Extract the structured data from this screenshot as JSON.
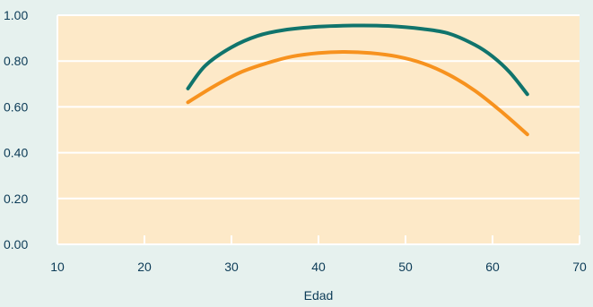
{
  "chart_data": {
    "type": "line",
    "title": "",
    "xlabel": "Edad",
    "ylabel": "",
    "xlim": [
      10,
      70
    ],
    "ylim": [
      0,
      1
    ],
    "x_ticks": [
      "10",
      "20",
      "30",
      "40",
      "50",
      "60",
      "70"
    ],
    "y_ticks": [
      "0.00",
      "0.20",
      "0.40",
      "0.60",
      "0.80",
      "1.00"
    ],
    "grid": "horizontal",
    "legend": "none",
    "plot_background": "#fde9c8",
    "page_background": "#e6f1ee",
    "series": [
      {
        "color": "#10746c",
        "x": [
          25,
          27,
          30,
          33,
          36,
          40,
          44,
          48,
          52,
          55,
          58,
          60,
          62,
          64
        ],
        "y": [
          0.68,
          0.78,
          0.86,
          0.91,
          0.935,
          0.95,
          0.955,
          0.953,
          0.94,
          0.92,
          0.87,
          0.82,
          0.75,
          0.655
        ]
      },
      {
        "color": "#f7921e",
        "x": [
          25,
          28,
          31,
          34,
          37,
          40,
          43,
          46,
          49,
          52,
          55,
          58,
          61,
          64
        ],
        "y": [
          0.62,
          0.69,
          0.75,
          0.79,
          0.82,
          0.835,
          0.84,
          0.835,
          0.82,
          0.79,
          0.74,
          0.67,
          0.58,
          0.48
        ]
      }
    ]
  }
}
